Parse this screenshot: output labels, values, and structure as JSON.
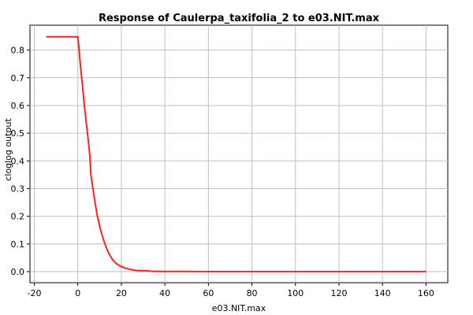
{
  "chart_data": {
    "type": "line",
    "title": "Response of Caulerpa_taxifolia_2 to e03.NIT.max",
    "xlabel": "e03.NIT.max",
    "ylabel": "cloglog output",
    "xlim": [
      -22,
      170
    ],
    "ylim": [
      -0.04,
      0.89
    ],
    "xticks": [
      -20,
      0,
      20,
      40,
      60,
      80,
      100,
      120,
      140,
      160
    ],
    "yticks": [
      0.0,
      0.1,
      0.2,
      0.3,
      0.4,
      0.5,
      0.6,
      0.7,
      0.8
    ],
    "grid": true,
    "series": [
      {
        "color": "#ff2020",
        "x": [
          -14.5,
          -10,
          -5,
          -1,
          0,
          0.5,
          1,
          2,
          3,
          4,
          5,
          5.5,
          6,
          7,
          8,
          9,
          10,
          11,
          12,
          13,
          14,
          15,
          16,
          17,
          18,
          20,
          22,
          24,
          26,
          28,
          30,
          32,
          33,
          35,
          40,
          50,
          60,
          80,
          100,
          120,
          140,
          160
        ],
        "y": [
          0.848,
          0.848,
          0.848,
          0.848,
          0.848,
          0.81,
          0.76,
          0.68,
          0.6,
          0.53,
          0.46,
          0.42,
          0.35,
          0.295,
          0.245,
          0.2,
          0.165,
          0.135,
          0.11,
          0.088,
          0.07,
          0.055,
          0.043,
          0.034,
          0.027,
          0.018,
          0.012,
          0.008,
          0.005,
          0.004,
          0.0035,
          0.003,
          0.0015,
          0.001,
          0.0005,
          0.0003,
          0.0002,
          0.0001,
          0.0,
          0.0,
          0.0,
          0.0
        ]
      }
    ]
  }
}
